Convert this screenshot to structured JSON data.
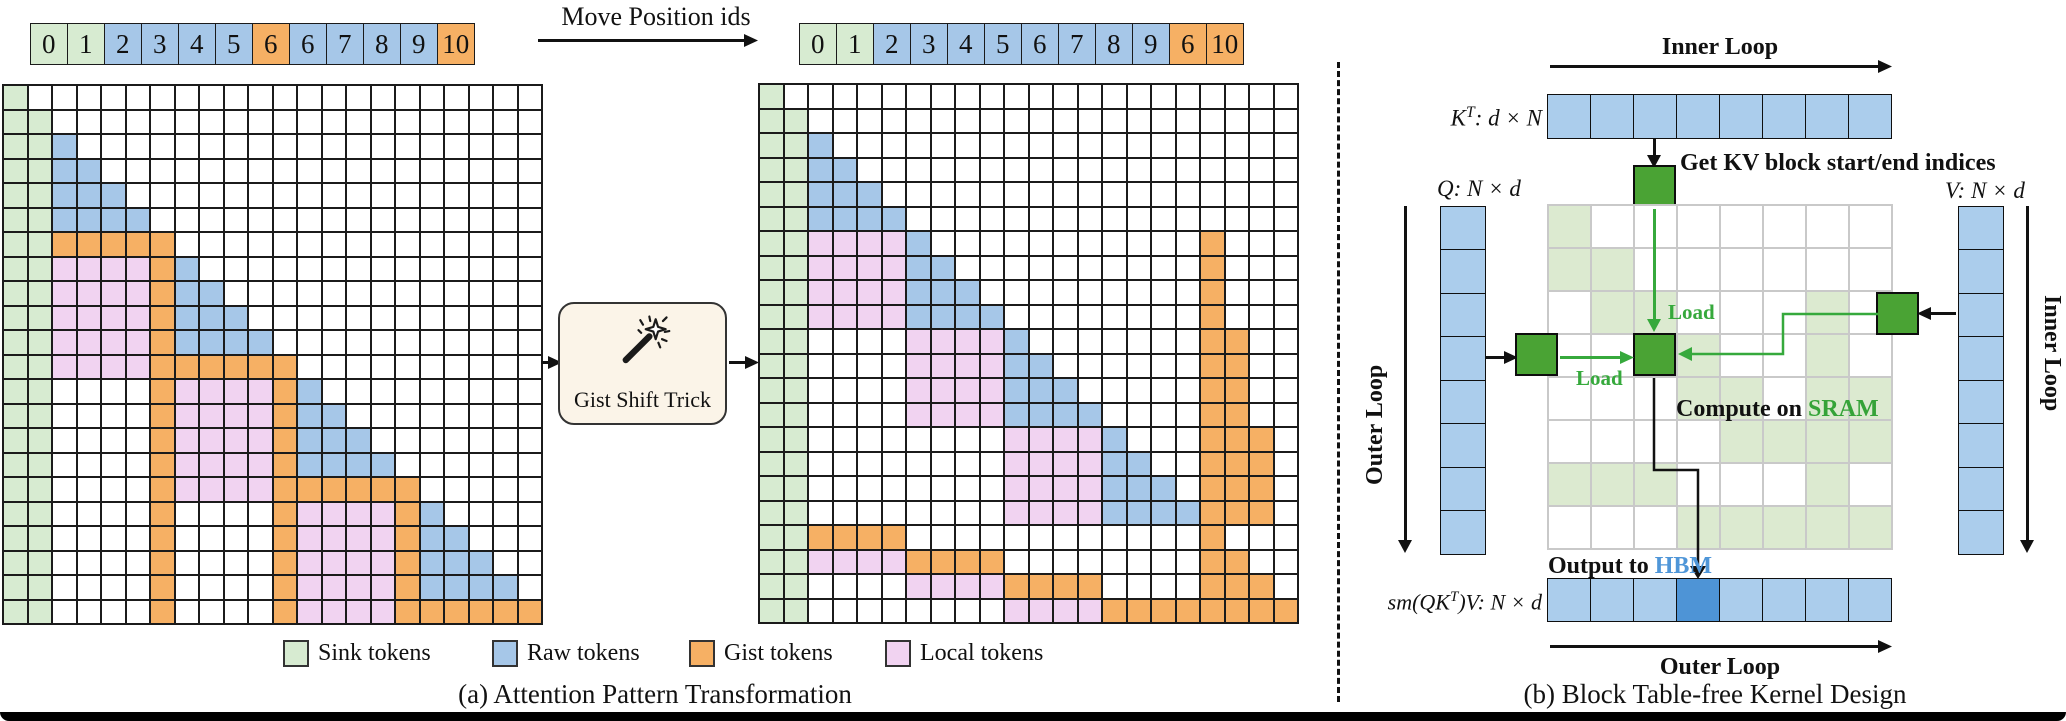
{
  "colors": {
    "sink": "#d7ebd1",
    "raw": "#a6c7e8",
    "gist": "#f6b064",
    "local": "#f1d3f1",
    "white": "#ffffff",
    "faded_green": "#dcead0",
    "block_green": "#4aa334",
    "arrow_green": "#36a93c",
    "qkv_blue": "#abcdec",
    "output_highlight": "#4e94d6",
    "hbm_blue": "#4f96d8",
    "sram_green": "#35a338",
    "line_dark": "#111111",
    "box_cream": "#fbf4e8",
    "icon_dark": "#1a1a1a"
  },
  "top": {
    "move_label": "Move Position ids",
    "left_sequence": [
      {
        "v": "0",
        "t": "sink"
      },
      {
        "v": "1",
        "t": "sink"
      },
      {
        "v": "2",
        "t": "raw"
      },
      {
        "v": "3",
        "t": "raw"
      },
      {
        "v": "4",
        "t": "raw"
      },
      {
        "v": "5",
        "t": "raw"
      },
      {
        "v": "6",
        "t": "gist"
      },
      {
        "v": "6",
        "t": "raw"
      },
      {
        "v": "7",
        "t": "raw"
      },
      {
        "v": "8",
        "t": "raw"
      },
      {
        "v": "9",
        "t": "raw"
      },
      {
        "v": "10",
        "t": "gist"
      }
    ],
    "right_sequence": [
      {
        "v": "0",
        "t": "sink"
      },
      {
        "v": "1",
        "t": "sink"
      },
      {
        "v": "2",
        "t": "raw"
      },
      {
        "v": "3",
        "t": "raw"
      },
      {
        "v": "4",
        "t": "raw"
      },
      {
        "v": "5",
        "t": "raw"
      },
      {
        "v": "6",
        "t": "raw"
      },
      {
        "v": "7",
        "t": "raw"
      },
      {
        "v": "8",
        "t": "raw"
      },
      {
        "v": "9",
        "t": "raw"
      },
      {
        "v": "6",
        "t": "gist"
      },
      {
        "v": "10",
        "t": "gist"
      }
    ]
  },
  "panel_a": {
    "caption": "(a) Attention Pattern Transformation",
    "box_label": "Gist Shift Trick",
    "legend": [
      {
        "label": "Sink tokens",
        "type": "sink"
      },
      {
        "label": "Raw tokens",
        "type": "raw"
      },
      {
        "label": "Gist tokens",
        "type": "gist"
      },
      {
        "label": "Local tokens",
        "type": "local"
      }
    ],
    "grid_before": [
      "SWWWWWWWWWWWWWWWWWWWWW",
      "SSWWWWWWWWWWWWWWWWWWWW",
      "SSRWWWWWWWWWWWWWWWWWWW",
      "SSRRWWWWWWWWWWWWWWWWWW",
      "SSRRRWWWWWWWWWWWWWWWWW",
      "SSRRRRWWWWWWWWWWWWWWWW",
      "SSGGGGGWWWWWWWWWWWWWWW",
      "SSLLLLGRWWWWWWWWWWWWWW",
      "SSLLLLGRRWWWWWWWWWWWWW",
      "SSLLLLGRRRWWWWWWWWWWWW",
      "SSLLLLGRRRRWWWWWWWWWWW",
      "SSLLLLGGGGGGWWWWWWWWWW",
      "SSWWWWGLLLLGRWWWWWWWWW",
      "SSWWWWGLLLLGRRWWWWWWWW",
      "SSWWWWGLLLLGRRRWWWWWWW",
      "SSWWWWGLLLLGRRRRWWWWWW",
      "SSWWWWGLLLLGGGGGGWWWWW",
      "SSWWWWGWWWWGLLLLGRWWWW",
      "SSWWWWGWWWWGLLLLGRRWWW",
      "SSWWWWGWWWWGLLLLGRRRWW",
      "SSWWWWGWWWWGLLLLGRRRRW",
      "SSWWWWGWWWWGLLLLGGGGGG"
    ],
    "grid_after": [
      "SWWWWWWWWWWWWWWWWWWWWW",
      "SSWWWWWWWWWWWWWWWWWWWW",
      "SSRWWWWWWWWWWWWWWWWWWW",
      "SSRRWWWWWWWWWWWWWWWWWW",
      "SSRRRWWWWWWWWWWWWWWWWW",
      "SSRRRRWWWWWWWWWWWWWWWW",
      "SSLLLLRWWWWWWWWWWWGWWW",
      "SSLLLLRRWWWWWWWWWWGWWW",
      "SSLLLLRRRWWWWWWWWWGWWW",
      "SSLLLLRRRRWWWWWWWWGWWW",
      "SSWWWWLLLLRWWWWWWWGGWW",
      "SSWWWWLLLLRRWWWWWWGGWW",
      "SSWWWWLLLLRRRWWWWWGGWW",
      "SSWWWWLLLLRRRRWWWWGGWW",
      "SSWWWWWWWWLLLLRWWWGGGW",
      "SSWWWWWWWWLLLLRRWWGGGW",
      "SSWWWWWWWWLLLLRRRWGGGW",
      "SSWWWWWWWWLLLLRRRRGGGW",
      "SSGGGGWWWWWWWWWWWWGWWW",
      "SSLLLLGGGGWWWWWWWWGGWW",
      "SSWWWWLLLLGGGGWWWWGGGW",
      "SSWWWWWWWWLLLLGGGGGGGG"
    ]
  },
  "panel_b": {
    "caption": "(b) Block Table-free Kernel Design",
    "inner_loop_top": "Inner Loop",
    "outer_loop_left": "Outer Loop",
    "inner_loop_right": "Inner Loop",
    "outer_loop_bottom": "Outer Loop",
    "kt_label": {
      "pre": "K",
      "sup": "T",
      "post": ": d × N"
    },
    "q_label": "Q: N × d",
    "v_label": "V: N × d",
    "get_kv_label": "Get KV block start/end indices",
    "load_label_vertical": "Load",
    "load_label_horizontal": "Load",
    "compute_label": "Compute on ",
    "sram_label": "SRAM",
    "output_label": "Output to ",
    "hbm_label": "HBM",
    "sm_label": {
      "pre": "sm(QK",
      "sup": "T",
      "post": ")V: N × d"
    },
    "k_row_cells": 8,
    "q_col_cells": 8,
    "v_col_cells": 8,
    "output_row_cells": 8,
    "output_highlight_index": 3,
    "faded_grid": [
      "GWWWWWWW",
      "GGWWWWWW",
      "WGGWWWGW",
      "WWGGWWGW",
      "WWWGGWGG",
      "WWWWGGGG",
      "GGGWWWGW",
      "WWWGGGGG"
    ]
  }
}
